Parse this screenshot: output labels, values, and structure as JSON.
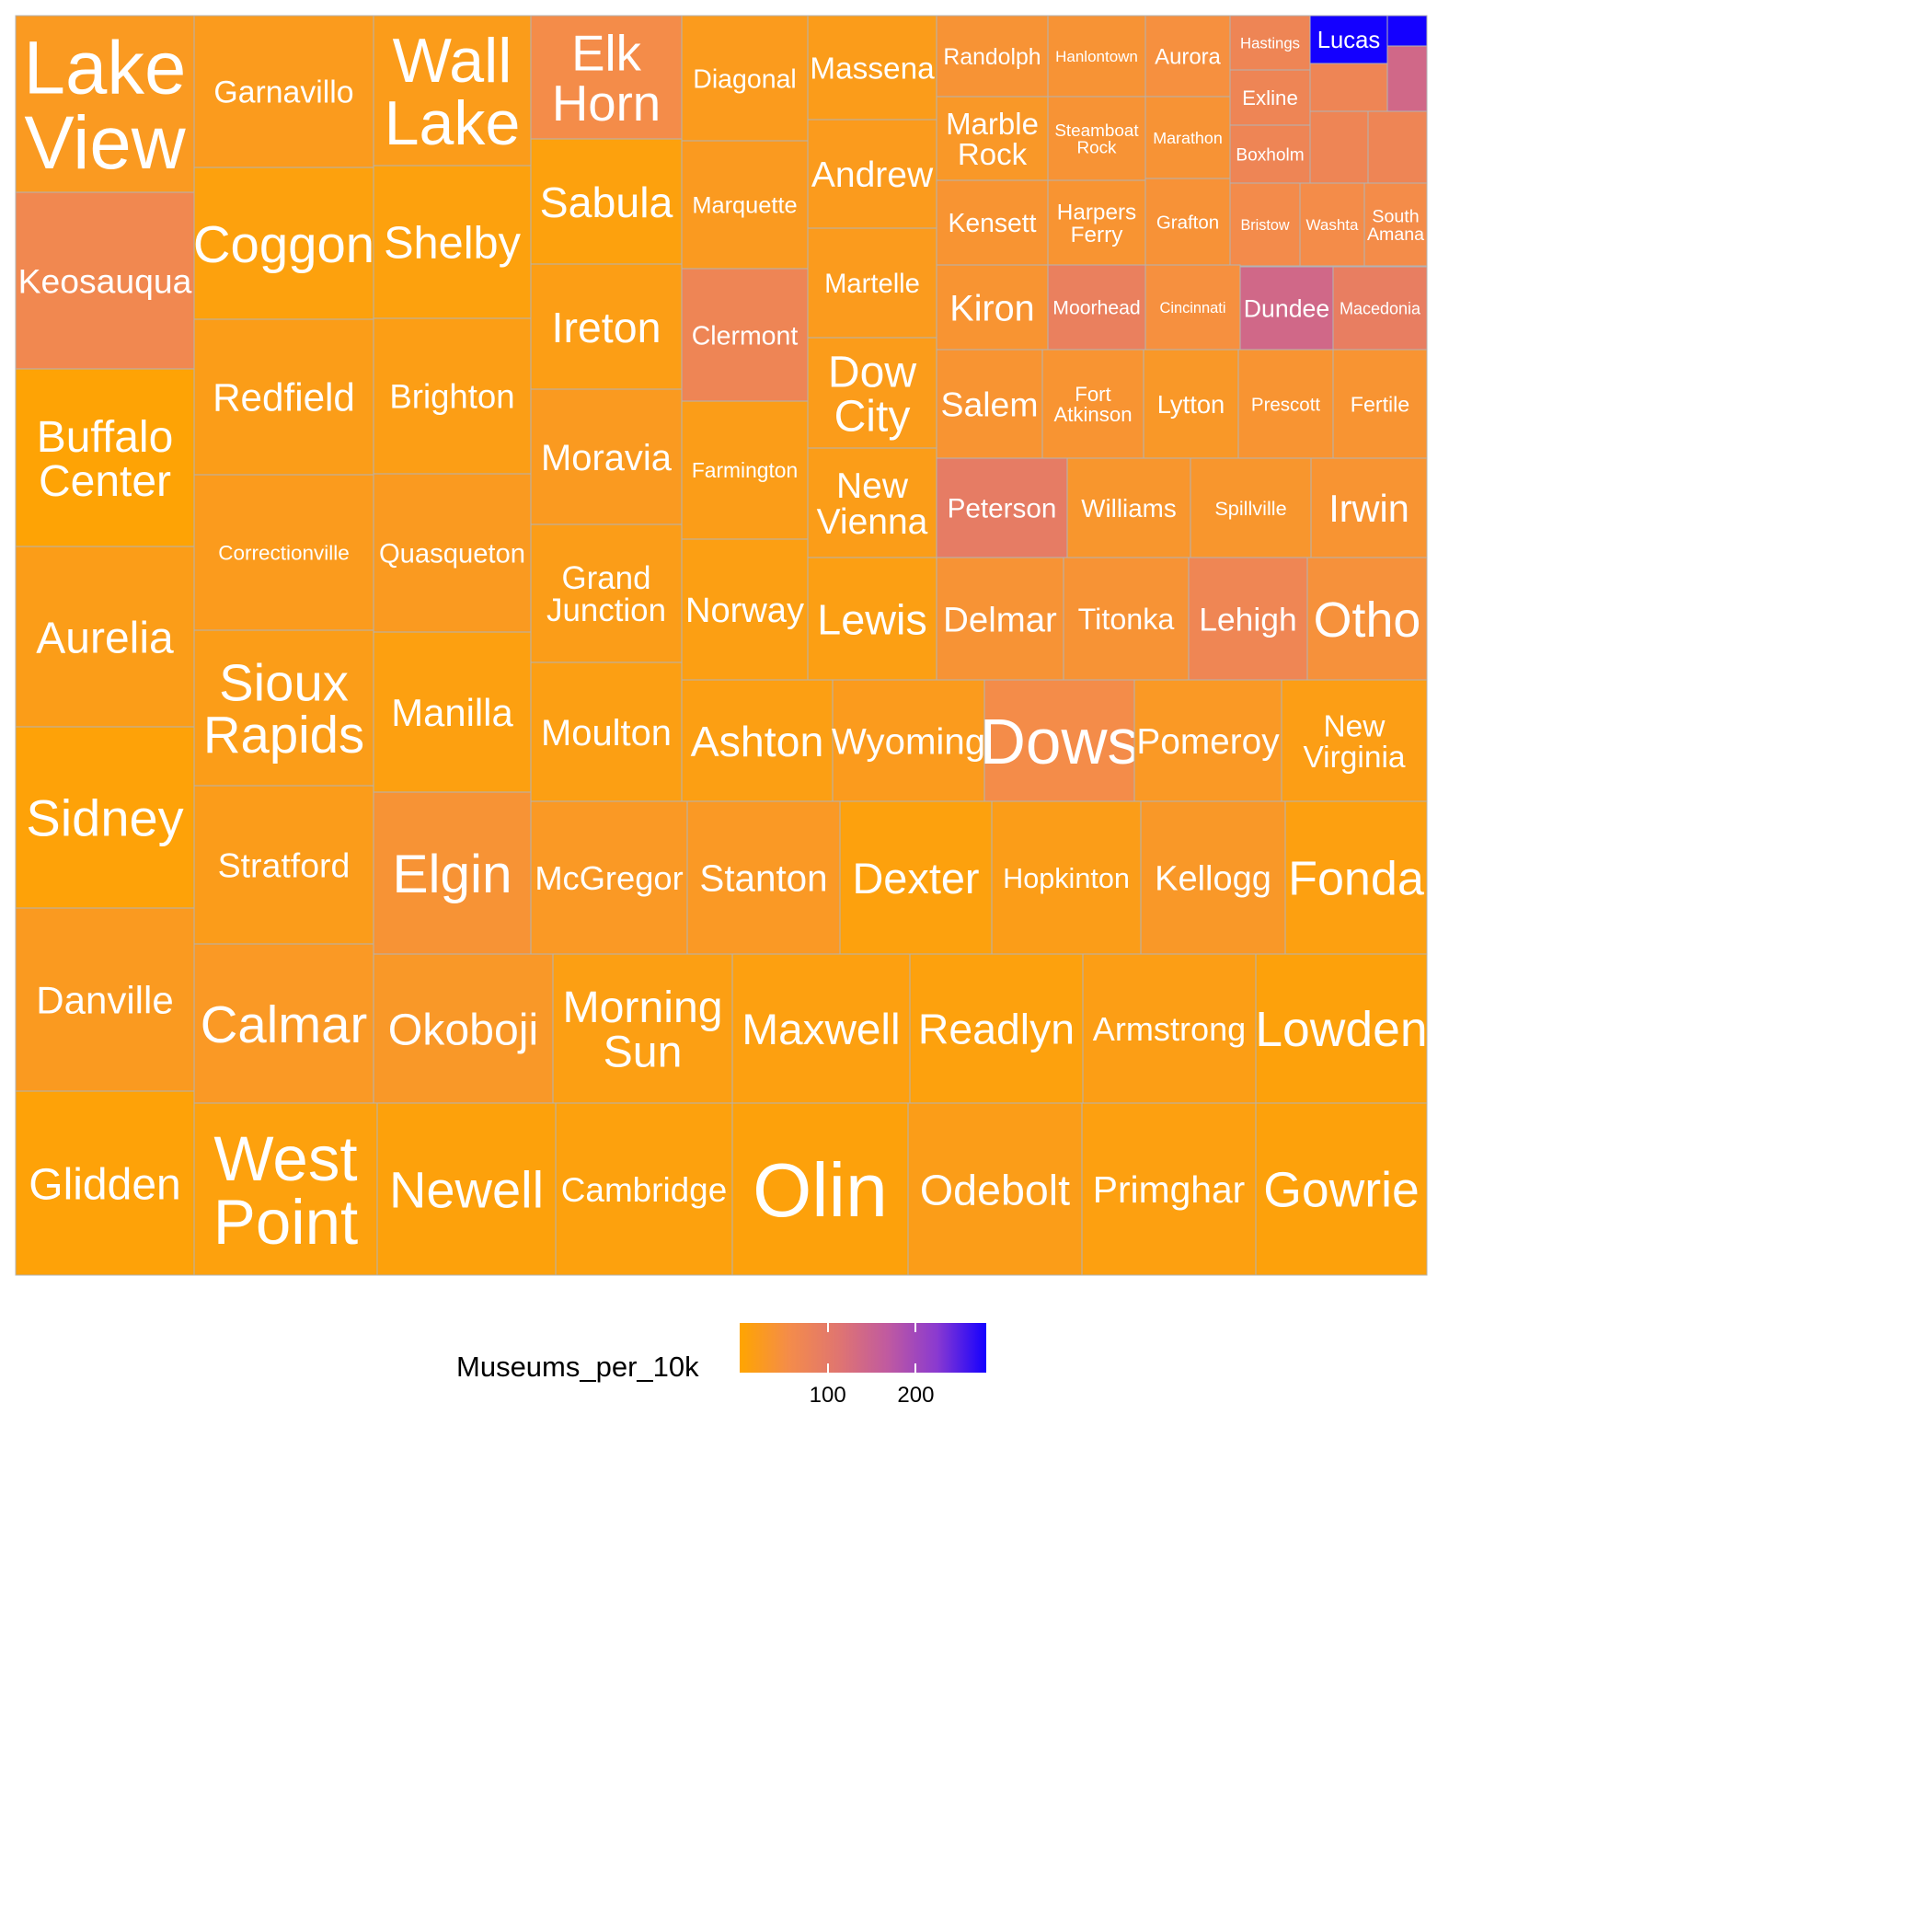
{
  "chart_data": {
    "type": "treemap",
    "fill_variable": "Museums_per_10k",
    "color_scale": {
      "low_color": "#ffa500",
      "high_color": "#0000ff",
      "domain": [
        0,
        280
      ]
    },
    "legend": {
      "title": "Museums_per_10k",
      "position": "bottom",
      "ticks": [
        {
          "value": 100,
          "label": "100"
        },
        {
          "value": 200,
          "label": "200"
        }
      ]
    },
    "grid": false,
    "cells": [
      {
        "label": "Lake View",
        "value": 25
      },
      {
        "label": "Keosauqua",
        "value": 65
      },
      {
        "label": "Buffalo Center",
        "value": 4
      },
      {
        "label": "Aurelia",
        "value": 18
      },
      {
        "label": "Sidney",
        "value": 6
      },
      {
        "label": "Danville",
        "value": 24
      },
      {
        "label": "Glidden",
        "value": 6
      },
      {
        "label": "Garnavillo",
        "value": 22
      },
      {
        "label": "Coggon",
        "value": 10
      },
      {
        "label": "Redfield",
        "value": 18
      },
      {
        "label": "Correctionville",
        "value": 22
      },
      {
        "label": "Sioux Rapids",
        "value": 18
      },
      {
        "label": "Stratford",
        "value": 20
      },
      {
        "label": "Calmar",
        "value": 28
      },
      {
        "label": "West Point",
        "value": 10
      },
      {
        "label": "Wall Lake",
        "value": 20
      },
      {
        "label": "Shelby",
        "value": 10
      },
      {
        "label": "Brighton",
        "value": 16
      },
      {
        "label": "Quasqueton",
        "value": 24
      },
      {
        "label": "Manilla",
        "value": 12
      },
      {
        "label": "Elgin",
        "value": 40
      },
      {
        "label": "Okoboji",
        "value": 30
      },
      {
        "label": "Newell",
        "value": 8
      },
      {
        "label": "Elk Horn",
        "value": 55
      },
      {
        "label": "Sabula",
        "value": 10
      },
      {
        "label": "Ireton",
        "value": 16
      },
      {
        "label": "Moravia",
        "value": 24
      },
      {
        "label": "Grand Junction",
        "value": 18
      },
      {
        "label": "Moulton",
        "value": 14
      },
      {
        "label": "McGregor",
        "value": 28
      },
      {
        "label": "Morning Sun",
        "value": 14
      },
      {
        "label": "Cambridge",
        "value": 10
      },
      {
        "label": "Diagonal",
        "value": 22
      },
      {
        "label": "Marquette",
        "value": 24
      },
      {
        "label": "Clermont",
        "value": 72
      },
      {
        "label": "Farmington",
        "value": 18
      },
      {
        "label": "Norway",
        "value": 14
      },
      {
        "label": "Ashton",
        "value": 14
      },
      {
        "label": "Wyoming",
        "value": 22
      },
      {
        "label": "Stanton",
        "value": 28
      },
      {
        "label": "Dexter",
        "value": 10
      },
      {
        "label": "Maxwell",
        "value": 12
      },
      {
        "label": "Olin",
        "value": 8
      },
      {
        "label": "Massena",
        "value": 20
      },
      {
        "label": "Andrew",
        "value": 22
      },
      {
        "label": "Martelle",
        "value": 22
      },
      {
        "label": "Dow City",
        "value": 20
      },
      {
        "label": "New Vienna",
        "value": 18
      },
      {
        "label": "Lewis",
        "value": 14
      },
      {
        "label": "Readlyn",
        "value": 10
      },
      {
        "label": "Odebolt",
        "value": 18
      },
      {
        "label": "Randolph",
        "value": 40
      },
      {
        "label": "Hanlontown",
        "value": 40
      },
      {
        "label": "Aurora",
        "value": 48
      },
      {
        "label": "Hastings",
        "value": 72
      },
      {
        "label": "Lucas",
        "value": 280
      },
      {
        "label": "Exline",
        "value": 72
      },
      {
        "label": "Boxholm",
        "value": 72
      },
      {
        "label": "Marble Rock",
        "value": 30
      },
      {
        "label": "Steamboat Rock",
        "value": 40
      },
      {
        "label": "Marathon",
        "value": 40
      },
      {
        "label": "Kensett",
        "value": 38
      },
      {
        "label": "Harpers Ferry",
        "value": 38
      },
      {
        "label": "Grafton",
        "value": 42
      },
      {
        "label": "Bristow",
        "value": 58
      },
      {
        "label": "Washta",
        "value": 55
      },
      {
        "label": "South Amana",
        "value": 55
      },
      {
        "label": "Kiron",
        "value": 38
      },
      {
        "label": "Moorhead",
        "value": 85
      },
      {
        "label": "Cincinnati",
        "value": 48
      },
      {
        "label": "Dundee",
        "value": 140
      },
      {
        "label": "Macedonia",
        "value": 90
      },
      {
        "label": "Salem",
        "value": 38
      },
      {
        "label": "Fort Atkinson",
        "value": 38
      },
      {
        "label": "Lytton",
        "value": 30
      },
      {
        "label": "Prescott",
        "value": 38
      },
      {
        "label": "Fertile",
        "value": 38
      },
      {
        "label": "Peterson",
        "value": 95
      },
      {
        "label": "Williams",
        "value": 34
      },
      {
        "label": "Spillville",
        "value": 34
      },
      {
        "label": "Irwin",
        "value": 38
      },
      {
        "label": "Delmar",
        "value": 40
      },
      {
        "label": "Titonka",
        "value": 40
      },
      {
        "label": "Lehigh",
        "value": 70
      },
      {
        "label": "Otho",
        "value": 45
      },
      {
        "label": "Dows",
        "value": 55
      },
      {
        "label": "Pomeroy",
        "value": 28
      },
      {
        "label": "New Virginia",
        "value": 16
      },
      {
        "label": "Hopkinton",
        "value": 18
      },
      {
        "label": "Kellogg",
        "value": 30
      },
      {
        "label": "Fonda",
        "value": 12
      },
      {
        "label": "Armstrong",
        "value": 16
      },
      {
        "label": "Lowden",
        "value": 8
      },
      {
        "label": "Primghar",
        "value": 12
      },
      {
        "label": "Gowrie",
        "value": 8
      }
    ]
  }
}
